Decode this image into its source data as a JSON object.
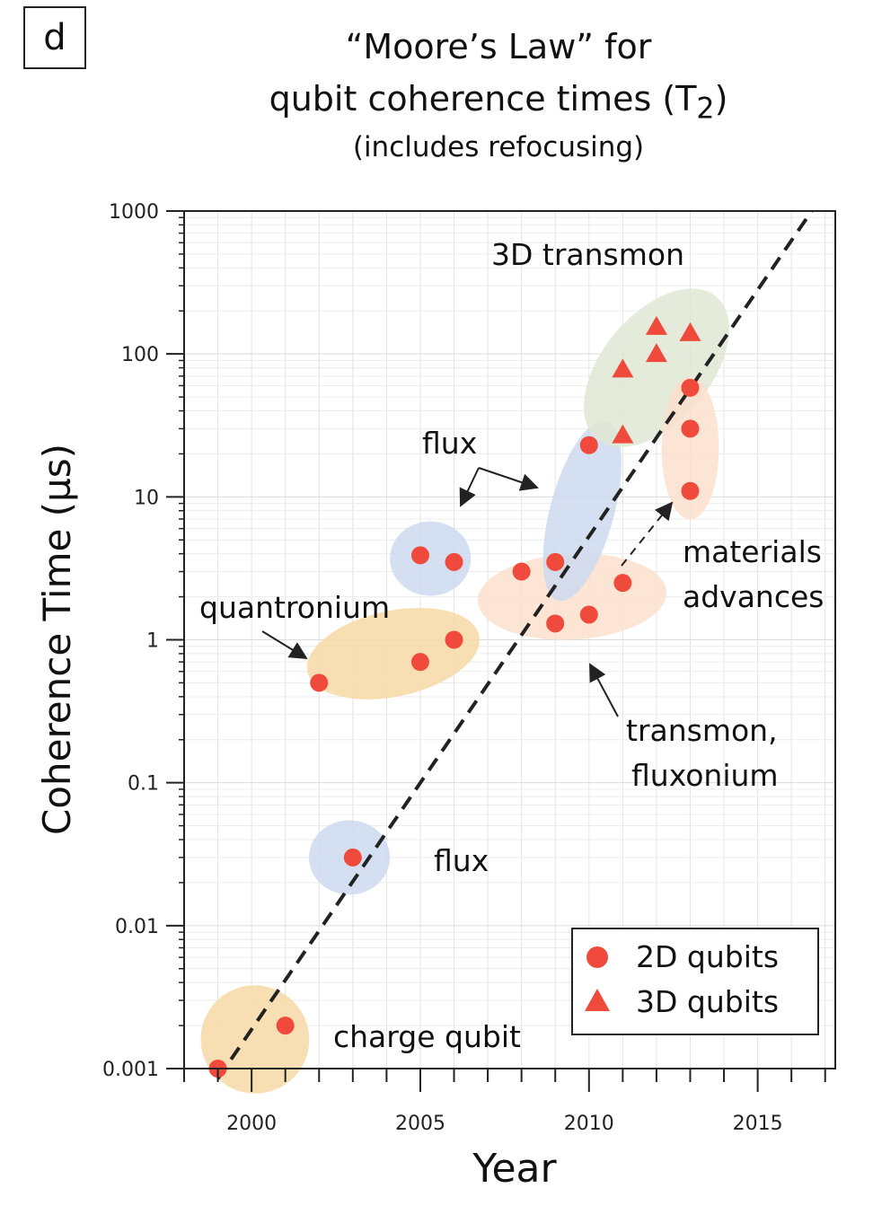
{
  "panel_label": "d",
  "chart_data": {
    "type": "scatter",
    "title_line1": "“Moore’s Law” for",
    "title_line2": "qubit coherence times (T",
    "title_line2_sub": "2",
    "title_line2_end": ")",
    "subtitle": "(includes refocusing)",
    "xlabel": "Year",
    "ylabel": "Coherence Time (µs)",
    "xlim": [
      1998,
      2017.3
    ],
    "ylim": [
      0.001,
      1000
    ],
    "yscale": "log",
    "x_ticks": [
      2000,
      2005,
      2010,
      2015
    ],
    "x_tick_labels": [
      "2000",
      "2005",
      "2010",
      "2015"
    ],
    "y_ticks": [
      0.001,
      0.01,
      0.1,
      1,
      10,
      100,
      1000
    ],
    "y_tick_labels": [
      "0.001",
      "0.01",
      "0.1",
      "1",
      "10",
      "100",
      "1000"
    ],
    "series": [
      {
        "name": "2D qubits",
        "marker": "circle",
        "color": "#f04a3c",
        "points": [
          {
            "x": 1999,
            "y": 0.001
          },
          {
            "x": 2001,
            "y": 0.002
          },
          {
            "x": 2003,
            "y": 0.03
          },
          {
            "x": 2002,
            "y": 0.5
          },
          {
            "x": 2005,
            "y": 0.7
          },
          {
            "x": 2006,
            "y": 1.0
          },
          {
            "x": 2005,
            "y": 3.9
          },
          {
            "x": 2006,
            "y": 3.5
          },
          {
            "x": 2008,
            "y": 3.0
          },
          {
            "x": 2009,
            "y": 3.5
          },
          {
            "x": 2009,
            "y": 1.3
          },
          {
            "x": 2010,
            "y": 1.5
          },
          {
            "x": 2011,
            "y": 2.5
          },
          {
            "x": 2010,
            "y": 23
          },
          {
            "x": 2013,
            "y": 58
          },
          {
            "x": 2013,
            "y": 30
          },
          {
            "x": 2013,
            "y": 11
          }
        ]
      },
      {
        "name": "3D qubits",
        "marker": "triangle",
        "color": "#f04a3c",
        "points": [
          {
            "x": 2011,
            "y": 78
          },
          {
            "x": 2011,
            "y": 27
          },
          {
            "x": 2012,
            "y": 155
          },
          {
            "x": 2012,
            "y": 100
          },
          {
            "x": 2013,
            "y": 140
          }
        ]
      }
    ],
    "trend_line": {
      "style": "dashed",
      "color": "#222222",
      "from": {
        "x": 1999,
        "y": 0.00085
      },
      "to": {
        "x": 2016.6,
        "y": 1000
      }
    },
    "groups": [
      {
        "name": "charge qubit",
        "color": "#f7d9a6",
        "cx": 2000.1,
        "cy": 0.0016,
        "rx_years": 1.6,
        "ry_decades": 0.38,
        "rot": -55
      },
      {
        "name": "flux",
        "color": "#cdd9ee",
        "cx": 2002.9,
        "cy": 0.03,
        "rx_years": 1.2,
        "ry_decades": 0.26,
        "rot": 0
      },
      {
        "name": "quantronium",
        "color": "#f7d9a6",
        "cx": 2004.2,
        "cy": 0.8,
        "rx_years": 2.6,
        "ry_decades": 0.3,
        "rot": -12
      },
      {
        "name": "flux",
        "color": "#cdd9ee",
        "cx": 2005.3,
        "cy": 3.7,
        "rx_years": 1.2,
        "ry_decades": 0.26,
        "rot": 0
      },
      {
        "name": "transmon, fluxonium",
        "color": "#fbe0cc",
        "cx": 2009.5,
        "cy": 2.0,
        "rx_years": 2.8,
        "ry_decades": 0.3,
        "rot": -3
      },
      {
        "name": "flux",
        "color": "#cdd9ee",
        "cx": 2009.8,
        "cy": 8.0,
        "rx_years": 0.95,
        "ry_decades": 0.65,
        "rot": 15
      },
      {
        "name": "3D transmon",
        "color": "#dfe8d4",
        "cx": 2012.0,
        "cy": 80,
        "rx_years": 1.6,
        "ry_decades": 0.65,
        "rot": 40
      },
      {
        "name": "materials advances",
        "color": "#fbe0cc",
        "cx": 2013.0,
        "cy": 22,
        "rx_years": 0.85,
        "ry_decades": 0.5,
        "rot": 0
      }
    ],
    "annotations": [
      "3D transmon",
      "flux",
      "quantronium",
      "materials",
      "advances",
      "transmon,",
      "fluxonium",
      "flux",
      "charge qubit"
    ],
    "legend": {
      "position": "bottom-right",
      "entries": [
        "2D qubits",
        "3D qubits"
      ]
    }
  }
}
